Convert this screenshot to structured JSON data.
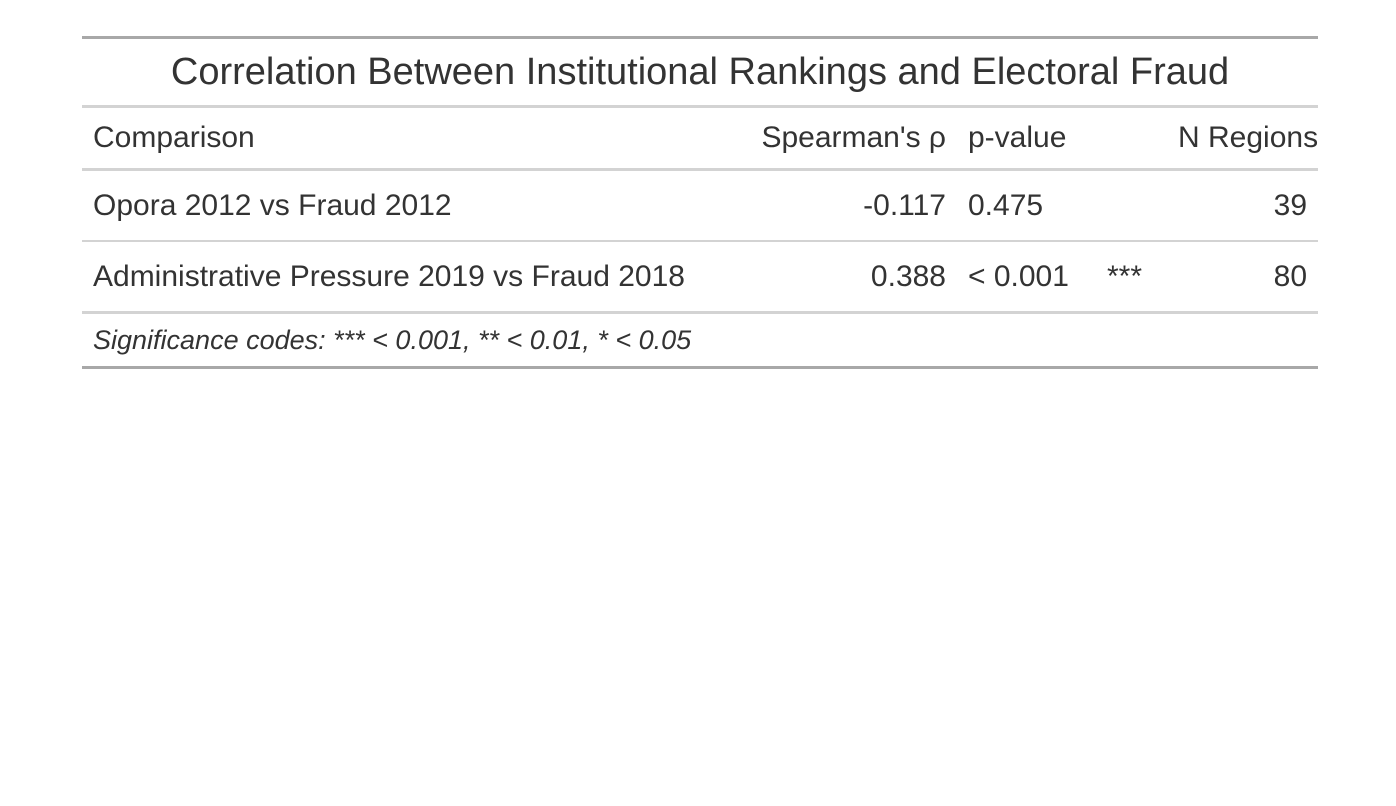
{
  "table": {
    "title": "Correlation Between Institutional Rankings and Electoral Fraud",
    "columns": {
      "comparison": "Comparison",
      "rho": "Spearman's ρ",
      "pvalue": "p-value",
      "sig": "",
      "n": "N Regions"
    },
    "rows": [
      {
        "comparison": "Opora 2012 vs Fraud 2012",
        "rho": "-0.117",
        "pvalue": "0.475",
        "sig": "",
        "n": "39"
      },
      {
        "comparison": "Administrative Pressure 2019 vs Fraud 2018",
        "rho": "0.388",
        "pvalue": "< 0.001",
        "sig": "***",
        "n": "80"
      }
    ],
    "footnote": "Significance codes: *** < 0.001, ** < 0.01, * < 0.05"
  }
}
